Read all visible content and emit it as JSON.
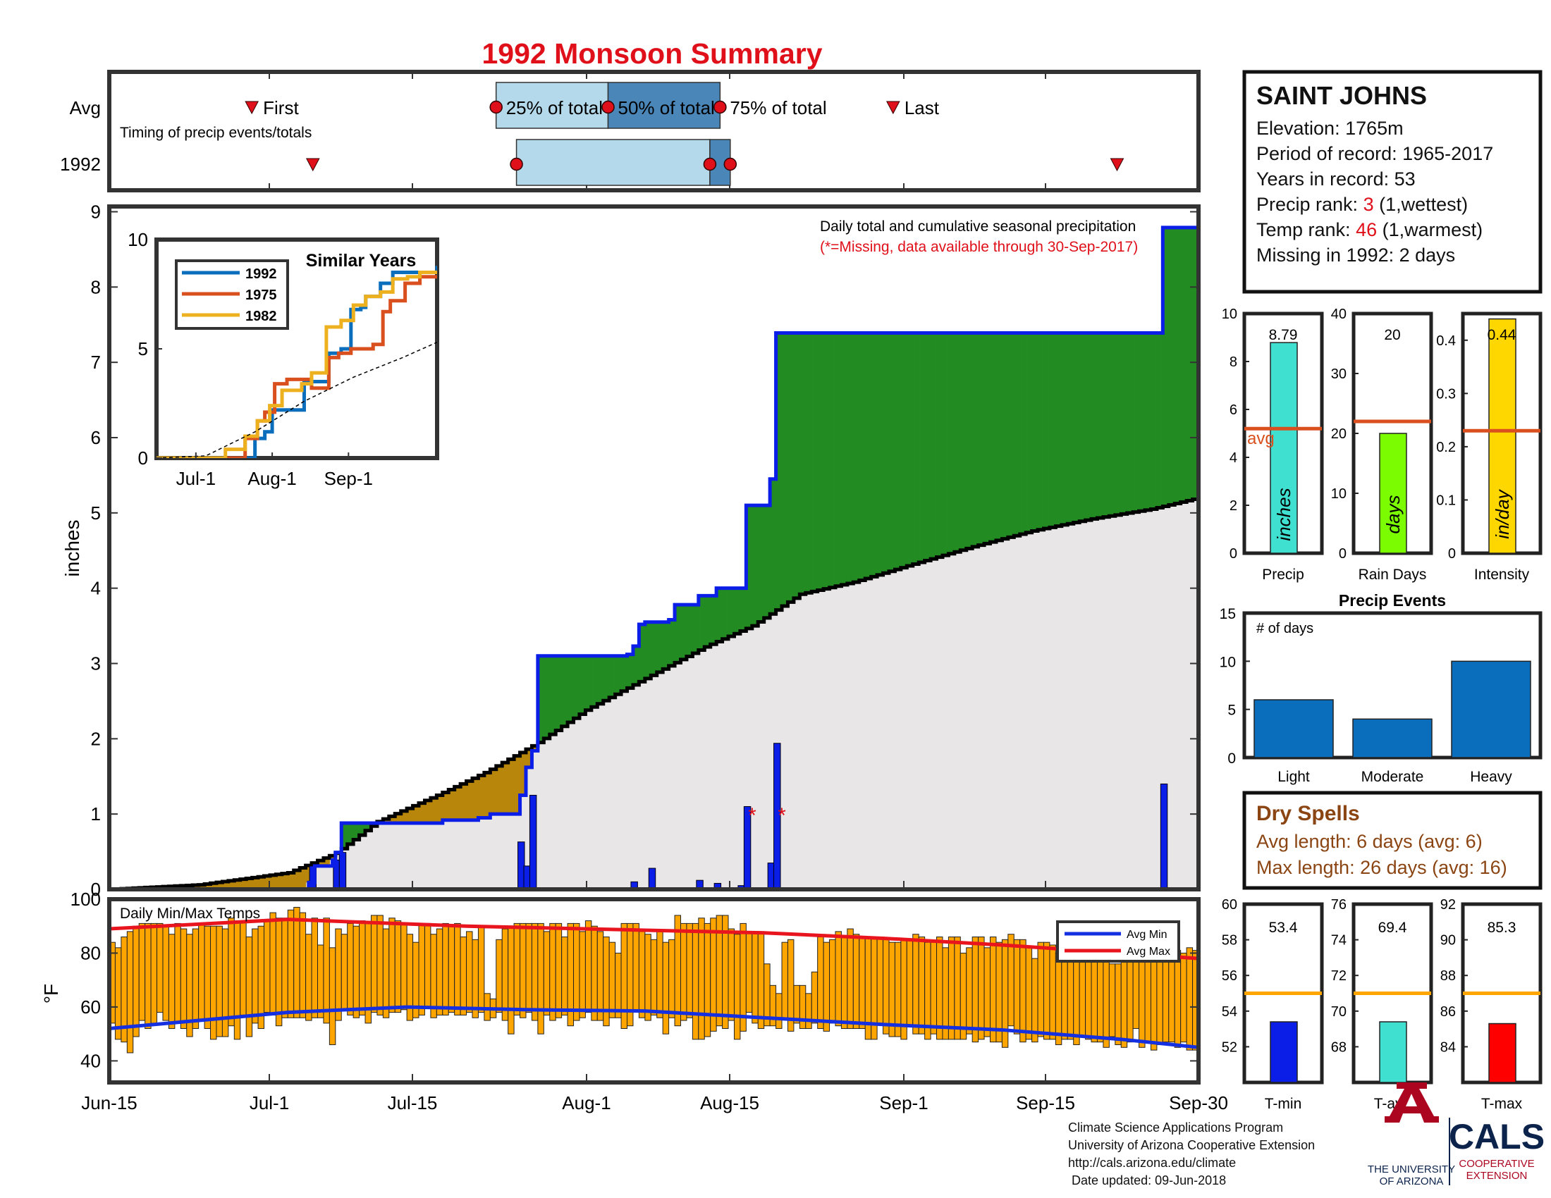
{
  "title": "1992 Monsoon Summary",
  "timing": {
    "avg_label": "Avg",
    "year_label": "1992",
    "caption": "Timing of precip events/totals",
    "first_label": "First",
    "last_label": "Last",
    "p25_label": "25% of total",
    "p50_label": "50% of total",
    "p75_label": "75% of total",
    "avg_days": {
      "first": 14,
      "p25": 38,
      "p50": 49,
      "p75": 60,
      "last": 77
    },
    "year_days": {
      "first": 20,
      "p25": 40,
      "p50": 59,
      "p75": 61,
      "last": 99
    }
  },
  "station": {
    "name": "SAINT JOHNS",
    "lines": [
      {
        "label": "Elevation: ",
        "value": "1765m"
      },
      {
        "label": "Period of record: ",
        "value": "1965-2017"
      },
      {
        "label": "Years in record: ",
        "value": "53"
      }
    ],
    "precip_rank_label": "Precip rank: ",
    "precip_rank": "3",
    "precip_rank_note": " (1,wettest)",
    "temp_rank_label": "Temp rank: ",
    "temp_rank": "46",
    "temp_rank_note": " (1,warmest)",
    "missing": "Missing in 1992: 2 days"
  },
  "main": {
    "ylabel": "inches",
    "note1": "Daily total and cumulative seasonal precipitation",
    "note2": "(*=Missing, data available through 30-Sep-2017)",
    "xticks": [
      "Jun-15",
      "Jul-1",
      "Jul-15",
      "Aug-1",
      "Aug-15",
      "Sep-1",
      "Sep-15",
      "Sep-30"
    ],
    "yticks": [
      "0",
      "1",
      "2",
      "3",
      "4",
      "5",
      "6",
      "7",
      "8",
      "9"
    ]
  },
  "inset": {
    "title": "Similar Years",
    "legend": [
      "1992",
      "1975",
      "1982"
    ],
    "xticks": [
      "Jul-1",
      "Aug-1",
      "Sep-1"
    ],
    "yticks": [
      "0",
      "5",
      "10"
    ]
  },
  "temps": {
    "title": "Daily Min/Max Temps",
    "ylabel": "°F",
    "yticks": [
      "40",
      "60",
      "80",
      "100"
    ],
    "legend_min": "Avg Min",
    "legend_max": "Avg Max"
  },
  "side_bars": {
    "precip": {
      "label": "Precip",
      "value_text": "8.79",
      "unit": "inches",
      "yticks": [
        "0",
        "2",
        "4",
        "6",
        "8",
        "10"
      ],
      "avg_text": "avg"
    },
    "raindays": {
      "label": "Rain Days",
      "value_text": "20",
      "unit": "days",
      "yticks": [
        "0",
        "10",
        "20",
        "30",
        "40"
      ]
    },
    "intensity": {
      "label": "Intensity",
      "value_text": "0.44",
      "unit": "in/day",
      "yticks": [
        "0",
        "0.1",
        "0.2",
        "0.3",
        "0.4"
      ]
    }
  },
  "events": {
    "title": "Precip Events",
    "ylabel": "# of days",
    "categories": [
      "Light",
      "Moderate",
      "Heavy"
    ],
    "yticks": [
      "0",
      "5",
      "10",
      "15"
    ]
  },
  "dry_spells": {
    "title": "Dry Spells",
    "avg_line": "Avg length: 6 days (avg: 6)",
    "max_line": "Max length: 26 days (avg: 16)"
  },
  "temp_bars": {
    "tmin": {
      "label": "T-min",
      "value_text": "53.4",
      "yticks": [
        "52",
        "54",
        "56",
        "58",
        "60"
      ]
    },
    "tavg": {
      "label": "T-avg",
      "value_text": "69.4",
      "yticks": [
        "68",
        "70",
        "72",
        "74",
        "76"
      ]
    },
    "tmax": {
      "label": "T-max",
      "value_text": "85.3",
      "yticks": [
        "84",
        "86",
        "88",
        "90",
        "92"
      ]
    }
  },
  "footer": {
    "lines": [
      "Climate Science Applications Program",
      "University of Arizona Cooperative Extension",
      "http://cals.arizona.edu/climate",
      " Date updated: 09-Jun-2018"
    ],
    "ua_line1": "THE UNIVERSITY",
    "ua_line2": "OF ARIZONA",
    "cals": "CALS",
    "coop1": "COOPERATIVE",
    "coop2": "EXTENSION"
  },
  "colors": {
    "title": "#e0101a",
    "station_red": "#e0101a",
    "above_fill": "#228b22",
    "below_fill": "#b8860b",
    "avg_fill": "#e8e6e6",
    "cum_line": "#0a1ee8",
    "precip_bar": "#0a1ee8",
    "temp_bar": "#ffa500",
    "avg_max": "#e8141e",
    "avg_min": "#1430e0",
    "p25_box": "#b3d9ea",
    "p50_box": "#4a86b8",
    "precip_side": "#40e0d0",
    "raindays_side": "#7cfc00",
    "intensity_side": "#ffd700",
    "events_bar": "#0a6ebd",
    "avg_line": "#d9501e",
    "temp_avg_line": "#ffa500",
    "dry_spell": "#8b4513",
    "tmin_bar": "#0a1ee8",
    "tavg_bar": "#40e0d0",
    "tmax_bar": "#ff0000",
    "ua_red": "#ab0520",
    "ua_blue": "#0c234b"
  },
  "chart_data": [
    {
      "type": "area",
      "name": "cumulative_precip",
      "xlabel": "",
      "ylabel": "inches",
      "ylim": [
        0,
        9
      ],
      "xlim": [
        "Jun-15",
        "Sep-30"
      ],
      "cumulative_steps_1992": [
        [
          0,
          0
        ],
        [
          33.5,
          0.09
        ],
        [
          34.5,
          0.31
        ],
        [
          37.5,
          0.39
        ],
        [
          38,
          0.49
        ],
        [
          39,
          0.88
        ],
        [
          55.5,
          0.88
        ],
        [
          56,
          0.92
        ],
        [
          61.5,
          0.92
        ],
        [
          62,
          0.95
        ],
        [
          63.5,
          0.95
        ],
        [
          64,
          1.0
        ],
        [
          68,
          1.0
        ],
        [
          69,
          1.25
        ],
        [
          70,
          1.62
        ],
        [
          71,
          1.84
        ],
        [
          72,
          3.1
        ],
        [
          87,
          3.12
        ],
        [
          88,
          3.23
        ],
        [
          89,
          3.52
        ],
        [
          90,
          3.55
        ],
        [
          94,
          3.58
        ],
        [
          95,
          3.78
        ],
        [
          98.5,
          3.78
        ],
        [
          99,
          3.9
        ],
        [
          101.5,
          3.9
        ],
        [
          102,
          4.0
        ],
        [
          106.5,
          4.0
        ],
        [
          107,
          5.1
        ],
        [
          110.5,
          5.1
        ],
        [
          111,
          5.45
        ],
        [
          112,
          7.39
        ],
        [
          176,
          7.39
        ],
        [
          177,
          8.79
        ],
        [
          183,
          8.79
        ]
      ],
      "average_cumulative": [
        [
          0,
          0
        ],
        [
          15,
          0.06
        ],
        [
          30,
          0.22
        ],
        [
          38,
          0.48
        ],
        [
          45,
          0.9
        ],
        [
          55,
          1.25
        ],
        [
          63,
          1.55
        ],
        [
          72,
          1.95
        ],
        [
          80,
          2.38
        ],
        [
          90,
          2.8
        ],
        [
          100,
          3.22
        ],
        [
          108,
          3.5
        ],
        [
          116,
          3.92
        ],
        [
          125,
          4.08
        ],
        [
          135,
          4.32
        ],
        [
          145,
          4.55
        ],
        [
          155,
          4.76
        ],
        [
          165,
          4.92
        ],
        [
          175,
          5.05
        ],
        [
          183,
          5.2
        ]
      ],
      "daily_precip_1992": [
        [
          34,
          0.31
        ],
        [
          38,
          0.39
        ],
        [
          39,
          0.49
        ],
        [
          47,
          0.02
        ],
        [
          69,
          0.63
        ],
        [
          70,
          0.31
        ],
        [
          71,
          1.25
        ],
        [
          88,
          0.1
        ],
        [
          91,
          0.28
        ],
        [
          99,
          0.12
        ],
        [
          102,
          0.08
        ],
        [
          106,
          0.05
        ],
        [
          107,
          1.1
        ],
        [
          111,
          0.35
        ],
        [
          112,
          1.94
        ],
        [
          177,
          1.4
        ]
      ],
      "missing_days": [
        [
          108,
          1.0
        ],
        [
          113,
          1.0
        ]
      ]
    },
    {
      "type": "line",
      "name": "similar_years",
      "title": "Similar Years",
      "ylim": [
        0,
        10
      ],
      "series": [
        {
          "name": "1992",
          "points": [
            [
              0,
              0
            ],
            [
              38,
              0
            ],
            [
              40,
              0.9
            ],
            [
              44,
              1.2
            ],
            [
              47,
              2.2
            ],
            [
              56,
              2.2
            ],
            [
              60,
              3.5
            ],
            [
              64,
              3.5
            ],
            [
              70,
              4.8
            ],
            [
              75,
              5.0
            ],
            [
              79,
              6.8
            ],
            [
              83,
              6.9
            ],
            [
              85,
              7.4
            ],
            [
              91,
              8.0
            ],
            [
              96,
              8.5
            ],
            [
              109,
              8.5
            ],
            [
              114,
              8.8
            ]
          ]
        },
        {
          "name": "1975",
          "points": [
            [
              0,
              0
            ],
            [
              33,
              0
            ],
            [
              36,
              0.9
            ],
            [
              41,
              1.7
            ],
            [
              44,
              2.1
            ],
            [
              48,
              3.4
            ],
            [
              53,
              3.6
            ],
            [
              59,
              3.6
            ],
            [
              63,
              3.2
            ],
            [
              70,
              4.6
            ],
            [
              74,
              4.8
            ],
            [
              79,
              5.0
            ],
            [
              83,
              5.0
            ],
            [
              88,
              5.2
            ],
            [
              92,
              6.7
            ],
            [
              95,
              7.2
            ],
            [
              101,
              8.0
            ],
            [
              107,
              8.3
            ],
            [
              114,
              8.3
            ]
          ]
        },
        {
          "name": "1982",
          "points": [
            [
              0,
              0
            ],
            [
              26,
              0
            ],
            [
              28,
              0.4
            ],
            [
              36,
              1.0
            ],
            [
              41,
              1.7
            ],
            [
              46,
              2.4
            ],
            [
              51,
              3.1
            ],
            [
              59,
              3.4
            ],
            [
              63,
              3.9
            ],
            [
              69,
              6.0
            ],
            [
              75,
              6.3
            ],
            [
              80,
              7.0
            ],
            [
              85,
              7.4
            ],
            [
              91,
              7.6
            ],
            [
              96,
              8.2
            ],
            [
              102,
              8.3
            ],
            [
              107,
              8.5
            ],
            [
              114,
              8.5
            ]
          ]
        },
        {
          "name": "",
          "points": [
            [
              0,
              0
            ],
            [
              20,
              0.1
            ],
            [
              40,
              1.2
            ],
            [
              60,
              2.6
            ],
            [
              80,
              3.7
            ],
            [
              100,
              4.6
            ],
            [
              114,
              5.3
            ]
          ]
        }
      ]
    },
    {
      "type": "bar",
      "name": "daily_temps",
      "title": "Daily Min/Max Temps",
      "ylabel": "°F",
      "ylim": [
        32,
        100
      ],
      "daily_min": [
        54,
        48,
        47,
        43,
        49,
        55,
        52,
        54,
        58,
        55,
        52,
        54,
        52,
        49,
        52,
        55,
        52,
        48,
        49,
        49,
        53,
        48,
        57,
        49,
        54,
        52,
        58,
        57,
        53,
        56,
        56,
        56,
        56,
        55,
        56,
        56,
        54,
        46,
        55,
        59,
        57,
        56,
        57,
        54,
        58,
        57,
        56,
        58,
        58,
        59,
        55,
        56,
        57,
        60,
        56,
        57,
        57,
        58,
        57,
        57,
        58,
        56,
        58,
        55,
        56,
        58,
        55,
        50,
        57,
        56,
        58,
        55,
        50,
        57,
        55,
        56,
        57,
        53,
        55,
        56,
        58,
        55,
        55,
        53,
        56,
        56,
        52,
        53,
        59,
        56,
        55,
        57,
        56,
        50,
        56,
        53,
        55,
        56,
        48,
        48,
        49,
        51,
        53,
        52,
        55,
        48,
        51,
        58,
        54,
        52,
        53,
        53,
        52,
        56,
        51,
        54,
        52,
        52,
        54,
        52,
        51,
        54,
        53,
        52,
        52,
        52,
        52,
        48,
        48,
        54,
        50,
        49,
        49,
        48,
        53,
        50,
        50,
        48,
        50,
        48,
        48,
        48,
        48,
        48,
        50,
        47,
        48,
        49,
        47,
        47,
        45,
        53,
        50,
        47,
        48,
        47,
        49,
        48,
        48,
        46,
        48,
        48,
        46,
        49,
        48,
        47,
        47,
        45,
        49,
        46,
        45,
        47,
        52,
        45,
        47,
        44,
        46,
        47,
        47,
        45,
        47,
        44,
        44
      ],
      "daily_max": [
        84,
        82,
        86,
        88,
        90,
        91,
        91,
        91,
        91,
        90,
        87,
        91,
        89,
        87,
        89,
        91,
        90,
        90,
        90,
        89,
        93,
        92,
        92,
        86,
        89,
        90,
        92,
        95,
        93,
        93,
        96,
        97,
        95,
        87,
        93,
        83,
        93,
        82,
        89,
        87,
        91,
        90,
        92,
        91,
        94,
        94,
        89,
        93,
        92,
        91,
        87,
        84,
        91,
        91,
        87,
        89,
        91,
        90,
        91,
        86,
        88,
        85,
        90,
        65,
        63,
        85,
        89,
        90,
        91,
        91,
        91,
        91,
        91,
        88,
        91,
        91,
        86,
        91,
        91,
        88,
        92,
        90,
        88,
        86,
        84,
        80,
        91,
        91,
        91,
        88,
        87,
        85,
        88,
        84,
        85,
        94,
        91,
        91,
        91,
        93,
        91,
        93,
        94,
        94,
        89,
        87,
        91,
        88,
        88,
        88,
        76,
        68,
        65,
        84,
        85,
        68,
        68,
        65,
        73,
        86,
        84,
        85,
        88,
        86,
        89,
        87,
        86,
        86,
        86,
        86,
        85,
        84,
        84,
        85,
        85,
        87,
        86,
        84,
        84,
        86,
        82,
        86,
        86,
        80,
        82,
        86,
        86,
        82,
        86,
        84,
        85,
        87,
        85,
        85,
        82,
        78,
        84,
        84,
        83,
        80,
        80,
        86,
        81,
        86,
        81,
        78,
        83,
        84,
        76,
        76,
        78,
        80,
        83,
        80,
        82,
        81,
        80,
        80,
        82,
        81,
        80,
        82,
        81
      ],
      "avg_max": [
        [
          0,
          89
        ],
        [
          30,
          92.5
        ],
        [
          60,
          90
        ],
        [
          90,
          88.5
        ],
        [
          110,
          87.5
        ],
        [
          130,
          85.5
        ],
        [
          150,
          83
        ],
        [
          170,
          80
        ],
        [
          183,
          78
        ]
      ],
      "avg_min": [
        [
          0,
          52
        ],
        [
          30,
          58
        ],
        [
          50,
          60
        ],
        [
          70,
          59
        ],
        [
          90,
          58.5
        ],
        [
          110,
          56
        ],
        [
          130,
          53.5
        ],
        [
          150,
          51.5
        ],
        [
          170,
          48
        ],
        [
          183,
          45
        ]
      ]
    },
    {
      "type": "bar",
      "name": "precip_totals",
      "categories": [
        "Precip",
        "Rain Days",
        "Intensity"
      ],
      "values": [
        8.79,
        20,
        0.44
      ],
      "averages": [
        5.2,
        22,
        0.23
      ],
      "ylims": [
        [
          0,
          10
        ],
        [
          0,
          40
        ],
        [
          0,
          0.45
        ]
      ]
    },
    {
      "type": "bar",
      "name": "precip_events",
      "title": "Precip Events",
      "ylabel": "# of days",
      "categories": [
        "Light",
        "Moderate",
        "Heavy"
      ],
      "values": [
        6,
        4,
        10
      ],
      "ylim": [
        0,
        15
      ]
    },
    {
      "type": "bar",
      "name": "temperature_means",
      "categories": [
        "T-min",
        "T-avg",
        "T-max"
      ],
      "values": [
        53.4,
        69.4,
        85.3
      ],
      "averages": [
        55,
        71,
        87
      ],
      "ylims": [
        [
          50,
          60
        ],
        [
          66,
          76
        ],
        [
          82,
          92
        ]
      ]
    }
  ]
}
